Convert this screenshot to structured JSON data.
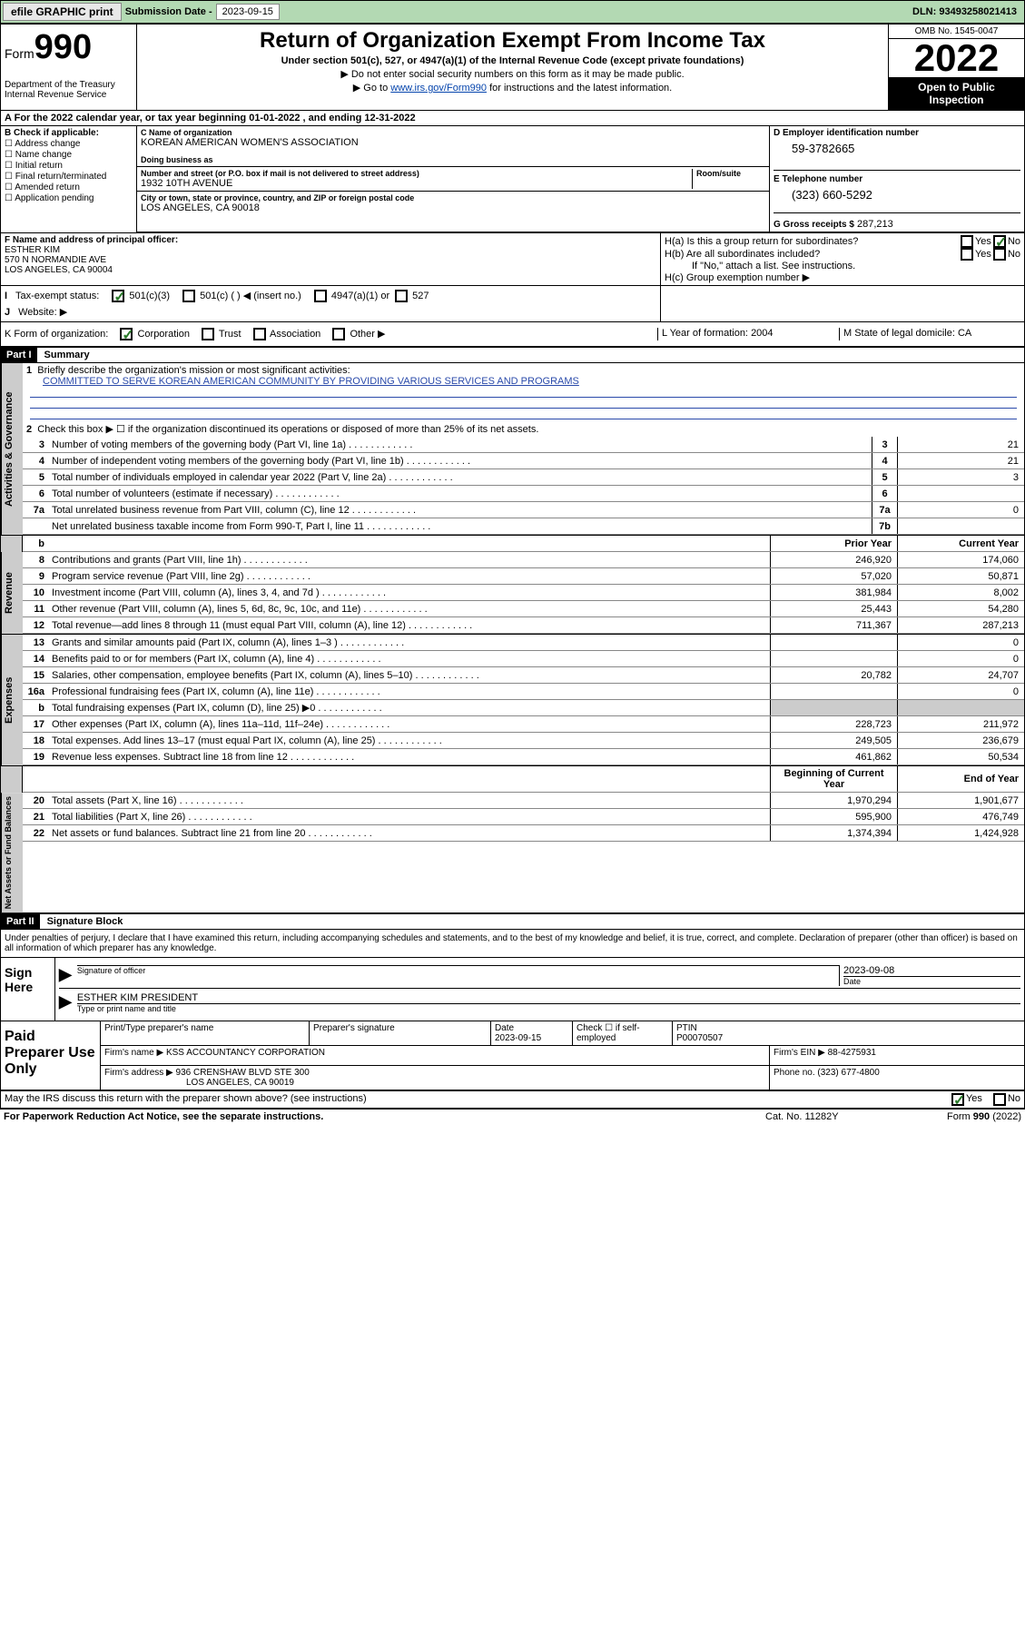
{
  "topbar": {
    "efile": "efile GRAPHIC print",
    "sub_label": "Submission Date - ",
    "sub_date": "2023-09-15",
    "dln": "DLN: 93493258021413"
  },
  "header": {
    "form": "Form",
    "num": "990",
    "dept": "Department of the Treasury Internal Revenue Service",
    "title": "Return of Organization Exempt From Income Tax",
    "sub1": "Under section 501(c), 527, or 4947(a)(1) of the Internal Revenue Code (except private foundations)",
    "sub2": "▶ Do not enter social security numbers on this form as it may be made public.",
    "sub3_pre": "▶ Go to ",
    "sub3_link": "www.irs.gov/Form990",
    "sub3_post": " for instructions and the latest information.",
    "omb": "OMB No. 1545-0047",
    "year": "2022",
    "inspection": "Open to Public Inspection"
  },
  "period": {
    "text": "For the 2022 calendar year, or tax year beginning 01-01-2022   , and ending 12-31-2022"
  },
  "box_b": {
    "hdr": "B Check if applicable:",
    "opts": [
      "Address change",
      "Name change",
      "Initial return",
      "Final return/terminated",
      "Amended return",
      "Application pending"
    ]
  },
  "box_c": {
    "lbl_name": "C Name of organization",
    "name": "KOREAN AMERICAN WOMEN'S ASSOCIATION",
    "lbl_dba": "Doing business as",
    "lbl_addr": "Number and street (or P.O. box if mail is not delivered to street address)",
    "lbl_room": "Room/suite",
    "addr": "1932 10TH AVENUE",
    "lbl_city": "City or town, state or province, country, and ZIP or foreign postal code",
    "city": "LOS ANGELES, CA  90018"
  },
  "box_d": {
    "lbl": "D Employer identification number",
    "val": "59-3782665"
  },
  "box_e": {
    "lbl": "E Telephone number",
    "val": "(323) 660-5292"
  },
  "box_g": {
    "lbl": "G Gross receipts $",
    "val": "287,213"
  },
  "box_f": {
    "lbl": "F Name and address of principal officer:",
    "name": "ESTHER KIM",
    "addr1": "570 N NORMANDIE AVE",
    "addr2": "LOS ANGELES, CA  90004"
  },
  "box_h": {
    "a_lbl": "H(a)  Is this a group return for subordinates?",
    "b_lbl": "H(b)  Are all subordinates included?",
    "b_note": "If \"No,\" attach a list. See instructions.",
    "c_lbl": "H(c)  Group exemption number ▶",
    "yes": "Yes",
    "no": "No"
  },
  "box_i": {
    "lbl": "Tax-exempt status:",
    "opts": [
      "501(c)(3)",
      "501(c) (  ) ◀ (insert no.)",
      "4947(a)(1) or",
      "527"
    ]
  },
  "box_j": {
    "lbl": "Website: ▶"
  },
  "box_k": {
    "lbl": "K Form of organization:",
    "opts": [
      "Corporation",
      "Trust",
      "Association",
      "Other ▶"
    ]
  },
  "box_l": {
    "lbl": "L Year of formation:",
    "val": "2004"
  },
  "box_m": {
    "lbl": "M State of legal domicile:",
    "val": "CA"
  },
  "part1": {
    "hdr": "Part I",
    "title": "Summary"
  },
  "gov": {
    "q1_lbl": "Briefly describe the organization's mission or most significant activities:",
    "q1_text": "COMMITTED TO SERVE KOREAN AMERICAN COMMUNITY BY PROVIDING VARIOUS SERVICES AND PROGRAMS",
    "q2": "Check this box ▶ ☐  if the organization discontinued its operations or disposed of more than 25% of its net assets.",
    "lines": [
      {
        "n": "3",
        "t": "Number of voting members of the governing body (Part VI, line 1a)",
        "box": "3",
        "v": "21"
      },
      {
        "n": "4",
        "t": "Number of independent voting members of the governing body (Part VI, line 1b)",
        "box": "4",
        "v": "21"
      },
      {
        "n": "5",
        "t": "Total number of individuals employed in calendar year 2022 (Part V, line 2a)",
        "box": "5",
        "v": "3"
      },
      {
        "n": "6",
        "t": "Total number of volunteers (estimate if necessary)",
        "box": "6",
        "v": ""
      },
      {
        "n": "7a",
        "t": "Total unrelated business revenue from Part VIII, column (C), line 12",
        "box": "7a",
        "v": "0"
      },
      {
        "n": "",
        "t": "Net unrelated business taxable income from Form 990-T, Part I, line 11",
        "box": "7b",
        "v": ""
      }
    ]
  },
  "colhdr": {
    "prior": "Prior Year",
    "current": "Current Year",
    "boy": "Beginning of Current Year",
    "eoy": "End of Year"
  },
  "rev": [
    {
      "n": "8",
      "t": "Contributions and grants (Part VIII, line 1h)",
      "p": "246,920",
      "c": "174,060"
    },
    {
      "n": "9",
      "t": "Program service revenue (Part VIII, line 2g)",
      "p": "57,020",
      "c": "50,871"
    },
    {
      "n": "10",
      "t": "Investment income (Part VIII, column (A), lines 3, 4, and 7d )",
      "p": "381,984",
      "c": "8,002"
    },
    {
      "n": "11",
      "t": "Other revenue (Part VIII, column (A), lines 5, 6d, 8c, 9c, 10c, and 11e)",
      "p": "25,443",
      "c": "54,280"
    },
    {
      "n": "12",
      "t": "Total revenue—add lines 8 through 11 (must equal Part VIII, column (A), line 12)",
      "p": "711,367",
      "c": "287,213"
    }
  ],
  "exp": [
    {
      "n": "13",
      "t": "Grants and similar amounts paid (Part IX, column (A), lines 1–3 )",
      "p": "",
      "c": "0"
    },
    {
      "n": "14",
      "t": "Benefits paid to or for members (Part IX, column (A), line 4)",
      "p": "",
      "c": "0"
    },
    {
      "n": "15",
      "t": "Salaries, other compensation, employee benefits (Part IX, column (A), lines 5–10)",
      "p": "20,782",
      "c": "24,707"
    },
    {
      "n": "16a",
      "t": "Professional fundraising fees (Part IX, column (A), line 11e)",
      "p": "",
      "c": "0"
    },
    {
      "n": "b",
      "t": "Total fundraising expenses (Part IX, column (D), line 25) ▶0",
      "p": "GRAY",
      "c": "GRAY"
    },
    {
      "n": "17",
      "t": "Other expenses (Part IX, column (A), lines 11a–11d, 11f–24e)",
      "p": "228,723",
      "c": "211,972"
    },
    {
      "n": "18",
      "t": "Total expenses. Add lines 13–17 (must equal Part IX, column (A), line 25)",
      "p": "249,505",
      "c": "236,679"
    },
    {
      "n": "19",
      "t": "Revenue less expenses. Subtract line 18 from line 12",
      "p": "461,862",
      "c": "50,534"
    }
  ],
  "net": [
    {
      "n": "20",
      "t": "Total assets (Part X, line 16)",
      "p": "1,970,294",
      "c": "1,901,677"
    },
    {
      "n": "21",
      "t": "Total liabilities (Part X, line 26)",
      "p": "595,900",
      "c": "476,749"
    },
    {
      "n": "22",
      "t": "Net assets or fund balances. Subtract line 21 from line 20",
      "p": "1,374,394",
      "c": "1,424,928"
    }
  ],
  "vtabs": {
    "gov": "Activities & Governance",
    "rev": "Revenue",
    "exp": "Expenses",
    "net": "Net Assets or Fund Balances"
  },
  "part2": {
    "hdr": "Part II",
    "title": "Signature Block"
  },
  "sig": {
    "decl": "Under penalties of perjury, I declare that I have examined this return, including accompanying schedules and statements, and to the best of my knowledge and belief, it is true, correct, and complete. Declaration of preparer (other than officer) is based on all information of which preparer has any knowledge.",
    "sign_here": "Sign Here",
    "sig_officer": "Signature of officer",
    "date": "Date",
    "sig_date": "2023-09-08",
    "name": "ESTHER KIM PRESIDENT",
    "name_lbl": "Type or print name and title",
    "paid": "Paid Preparer Use Only",
    "prep_name_lbl": "Print/Type preparer's name",
    "prep_sig_lbl": "Preparer's signature",
    "prep_date_lbl": "Date",
    "prep_date": "2023-09-15",
    "self_emp": "Check ☐ if self-employed",
    "ptin_lbl": "PTIN",
    "ptin": "P00070507",
    "firm_name_lbl": "Firm's name    ▶",
    "firm_name": "KSS ACCOUNTANCY CORPORATION",
    "firm_ein_lbl": "Firm's EIN ▶",
    "firm_ein": "88-4275931",
    "firm_addr_lbl": "Firm's address ▶",
    "firm_addr1": "936 CRENSHAW BLVD STE 300",
    "firm_addr2": "LOS ANGELES, CA  90019",
    "firm_phone_lbl": "Phone no.",
    "firm_phone": "(323) 677-4800",
    "discuss": "May the IRS discuss this return with the preparer shown above? (see instructions)"
  },
  "footer": {
    "left": "For Paperwork Reduction Act Notice, see the separate instructions.",
    "mid": "Cat. No. 11282Y",
    "right": "Form 990 (2022)"
  }
}
